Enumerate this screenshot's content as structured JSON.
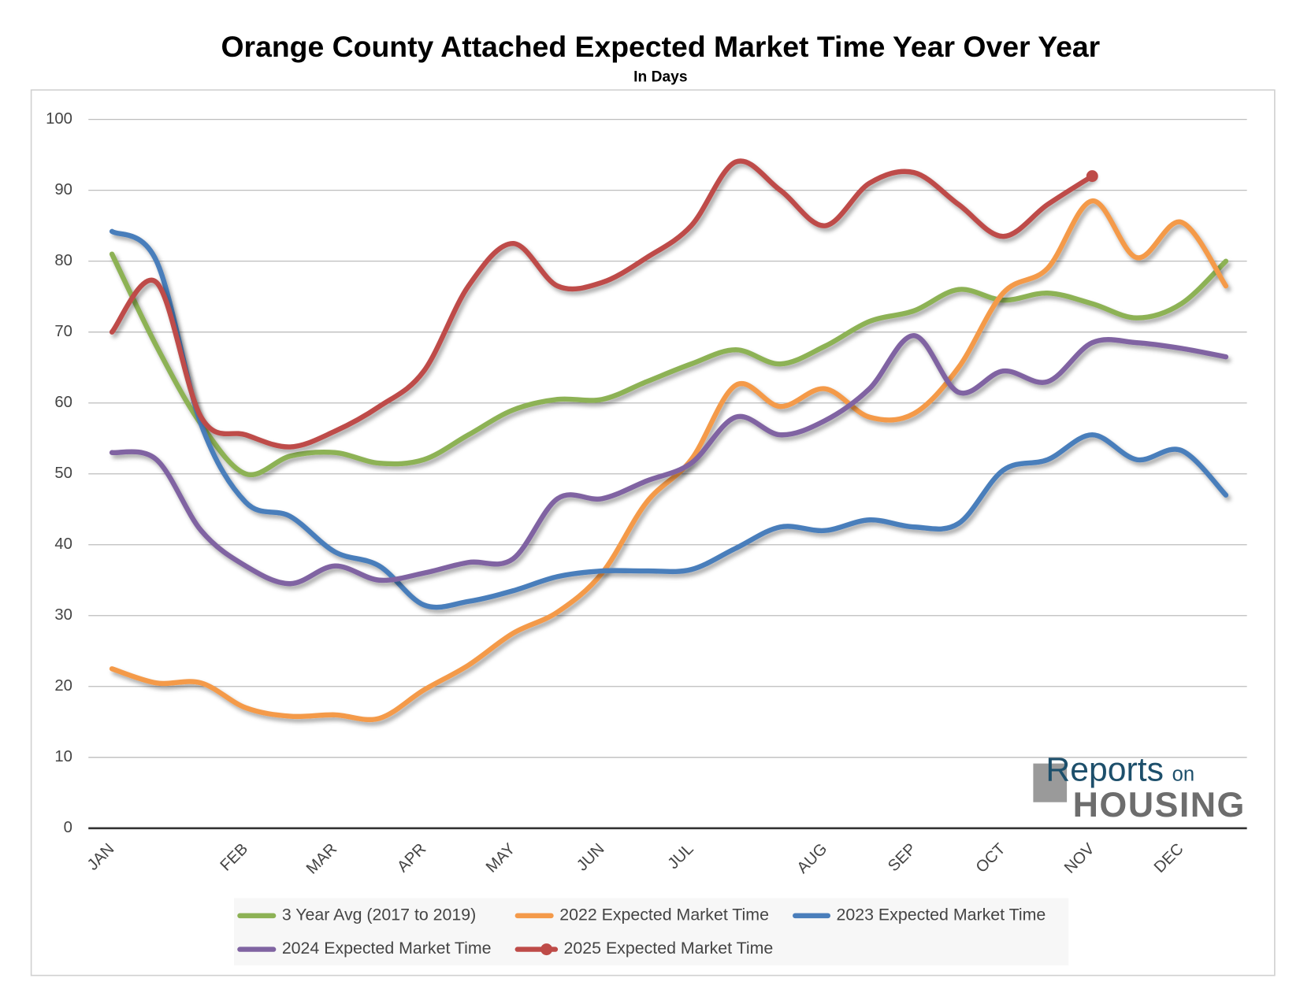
{
  "chart_data": {
    "type": "line",
    "title": "Orange County Attached Expected Market Time Year Over Year",
    "subtitle": "In Days",
    "categories": [
      "JAN",
      null,
      null,
      "FEB",
      null,
      "MAR",
      null,
      "APR",
      null,
      "MAY",
      null,
      "JUN",
      null,
      "JUL",
      null,
      null,
      "AUG",
      null,
      "SEP",
      null,
      "OCT",
      null,
      "NOV",
      null,
      "DEC",
      null
    ],
    "ylim": [
      0,
      100
    ],
    "yticks": [
      0,
      10,
      20,
      30,
      40,
      50,
      60,
      70,
      80,
      90,
      100
    ],
    "grid": true,
    "legend": "bottom",
    "series": [
      {
        "name": "3 Year Avg (2017 to 2019)",
        "color": "#8db255",
        "values": [
          81,
          68,
          57,
          50,
          52.5,
          53,
          51.5,
          52,
          55.5,
          59,
          60.5,
          60.5,
          63,
          65.5,
          67.5,
          65.5,
          68,
          71.5,
          73,
          76,
          74.5,
          75.5,
          74,
          72,
          74,
          80
        ]
      },
      {
        "name": "2022 Expected Market Time",
        "color": "#f49a4a",
        "values": [
          22.5,
          20.5,
          20.5,
          17,
          15.8,
          16,
          15.5,
          19.5,
          23,
          27.5,
          30.5,
          36,
          46,
          52,
          62.5,
          59.5,
          62,
          58,
          58.5,
          65,
          75.5,
          79,
          88.5,
          80.5,
          85.5,
          76.5
        ]
      },
      {
        "name": "2023 Expected Market Time",
        "color": "#4a7ebb",
        "values": [
          84.2,
          80,
          57,
          46,
          44,
          39,
          37,
          31.5,
          32,
          33.5,
          35.5,
          36.3,
          36.3,
          36.5,
          39.5,
          42.5,
          42,
          43.5,
          42.5,
          43,
          50.5,
          52,
          55.5,
          52,
          53.3,
          47
        ]
      },
      {
        "name": "2024 Expected Market Time",
        "color": "#8064a2",
        "values": [
          53,
          52,
          42,
          37,
          34.5,
          37,
          35,
          36,
          37.5,
          38,
          46.5,
          46.5,
          49,
          51.5,
          58,
          55.5,
          57.5,
          62,
          69.5,
          61.5,
          64.5,
          63,
          68.5,
          68.5,
          67.7,
          66.5
        ]
      },
      {
        "name": "2025 Expected Market Time",
        "color": "#be4b48",
        "marker": true,
        "values": [
          70,
          77,
          58,
          55.5,
          53.8,
          56,
          59.5,
          64.5,
          76.5,
          82.5,
          76.5,
          77,
          80.5,
          85,
          94,
          90,
          85,
          91,
          92.5,
          88,
          83.5,
          88,
          92,
          null,
          null,
          null
        ]
      }
    ]
  },
  "logo": {
    "brand": "Reports",
    "small": "on",
    "main": "HOUSING"
  }
}
